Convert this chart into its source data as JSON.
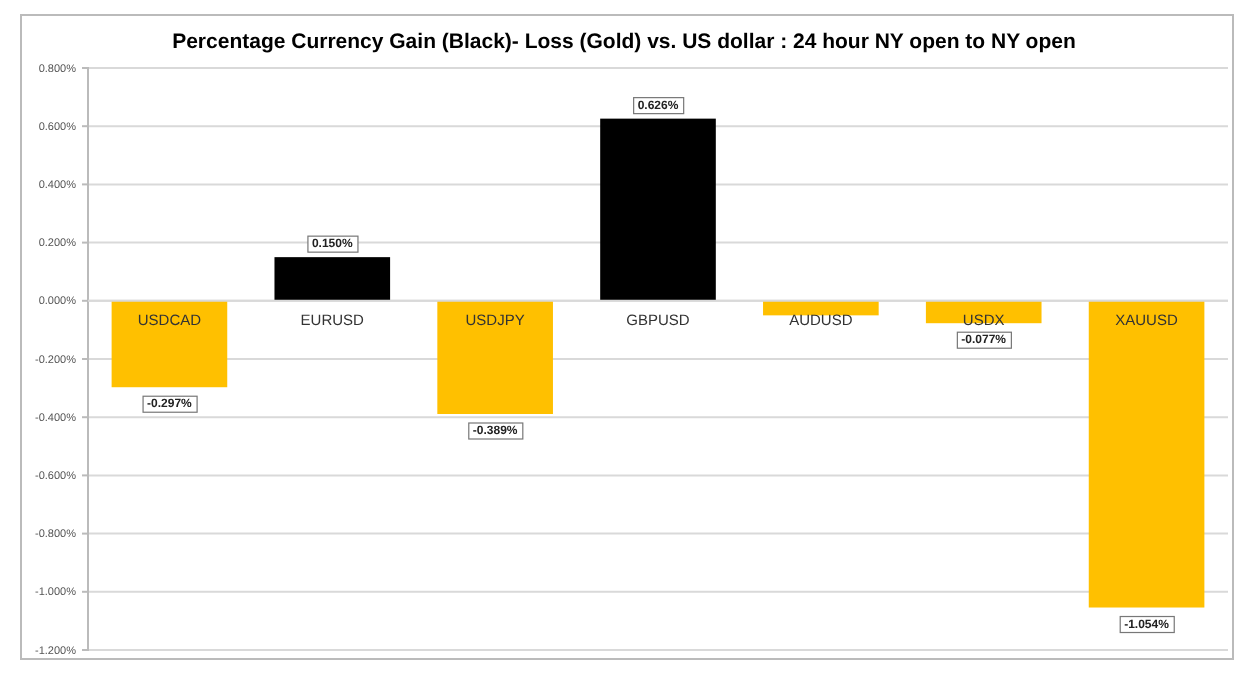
{
  "chart_data": {
    "type": "bar",
    "title": "Percentage Currency  Gain (Black)- Loss (Gold)  vs. US dollar : 24 hour  NY  open to  NY  open",
    "categories": [
      "USDCAD",
      "EURUSD",
      "USDJPY",
      "GBPUSD",
      "AUDUSD",
      "USDX",
      "XAUUSD"
    ],
    "values": [
      -0.297,
      0.15,
      -0.389,
      0.626,
      -0.05,
      -0.077,
      -1.054
    ],
    "colors": [
      "#ffc000",
      "#000000",
      "#ffc000",
      "#000000",
      "#ffc000",
      "#ffc000",
      "#ffc000"
    ],
    "value_labels": [
      "-0.297%",
      "0.150%",
      "-0.389%",
      "0.626%",
      null,
      "-0.077%",
      "-1.054%"
    ],
    "ylim": [
      -1.2,
      0.8
    ],
    "yticks": [
      {
        "value": -1.2,
        "label": "-1.200%"
      },
      {
        "value": -1.0,
        "label": "-1.000%"
      },
      {
        "value": -0.8,
        "label": "-0.800%"
      },
      {
        "value": -0.6,
        "label": "-0.600%"
      },
      {
        "value": -0.4,
        "label": "-0.400%"
      },
      {
        "value": -0.2,
        "label": "-0.200%"
      },
      {
        "value": 0,
        "label": "0.000%"
      },
      {
        "value": 0.2,
        "label": "0.200%"
      },
      {
        "value": 0.4,
        "label": "0.400%"
      },
      {
        "value": 0.6,
        "label": "0.600%"
      },
      {
        "value": 0.8,
        "label": "0.800%"
      }
    ],
    "grid": "y"
  }
}
